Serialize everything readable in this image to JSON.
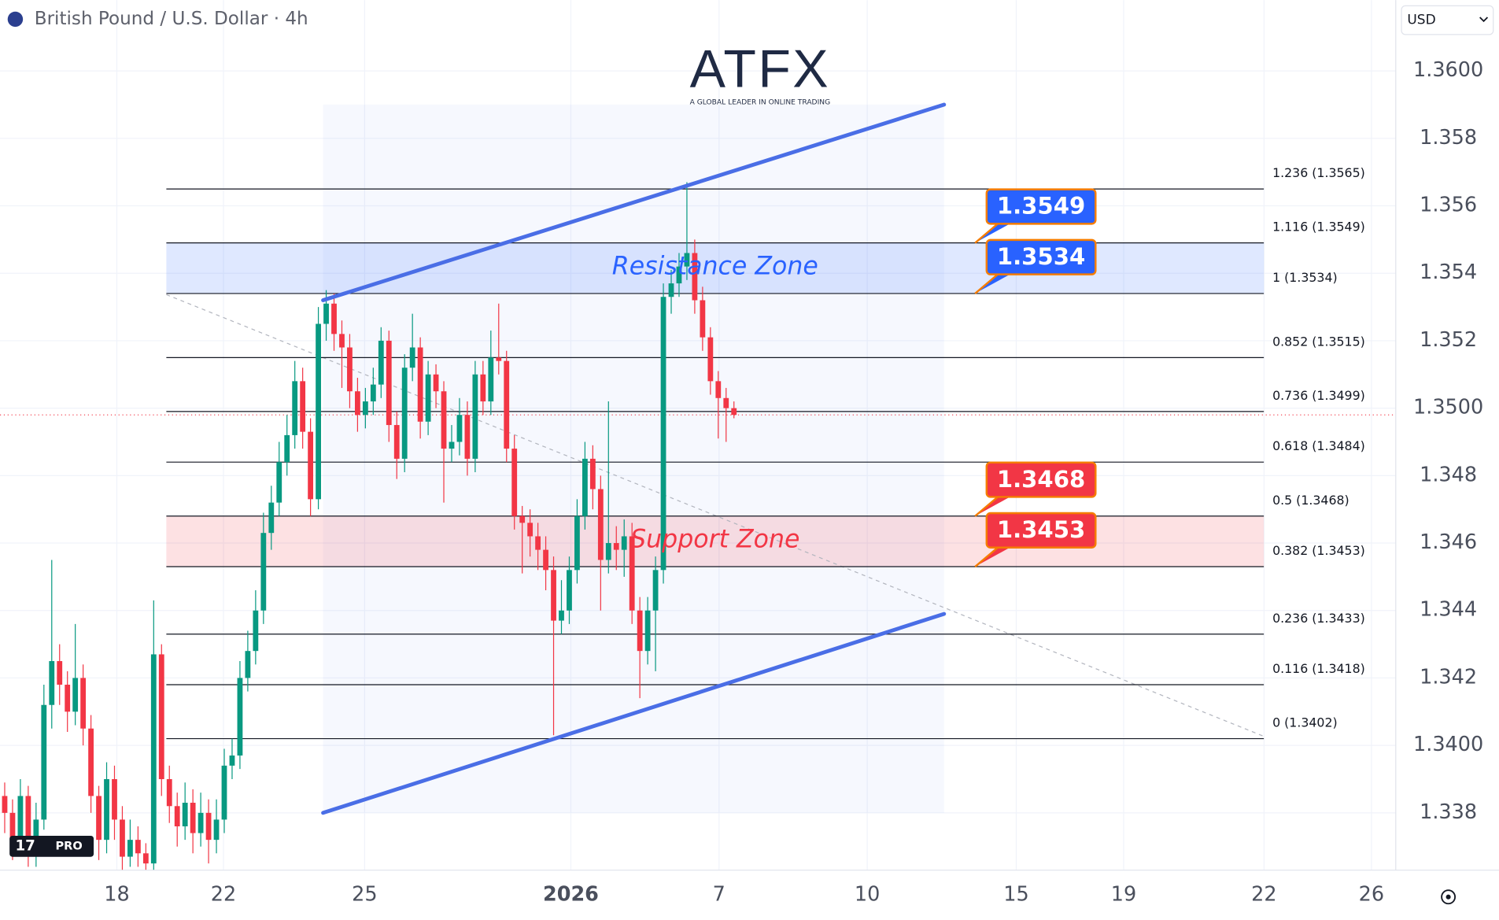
{
  "header": {
    "symbol": "British Pound / U.S. Dollar · 4h",
    "currency": "USD"
  },
  "logo": {
    "name": "ATFX",
    "tagline": "A GLOBAL LEADER IN ONLINE TRADING",
    "badge": "PRO"
  },
  "chart_data": {
    "type": "candlestick",
    "up_color": "#089981",
    "down_color": "#f23645",
    "open": [
      1.3385,
      1.338,
      1.3372,
      1.3385,
      1.3368,
      1.3378,
      1.3412,
      1.3425,
      1.3418,
      1.341,
      1.342,
      1.3405,
      1.3385,
      1.3372,
      1.339,
      1.3378,
      1.3367,
      1.3372,
      1.3368,
      1.3365,
      1.3427,
      1.339,
      1.3382,
      1.3376,
      1.3383,
      1.3374,
      1.338,
      1.3372,
      1.3378,
      1.3394,
      1.3397,
      1.342,
      1.3428,
      1.344,
      1.3463,
      1.3472,
      1.3484,
      1.3492,
      1.3508,
      1.3493,
      1.3473,
      1.3525,
      1.3531,
      1.3522,
      1.3518,
      1.3505,
      1.3498,
      1.3502,
      1.3507,
      1.352,
      1.3495,
      1.3485,
      1.3512,
      1.3518,
      1.3496,
      1.351,
      1.3505,
      1.3488,
      1.349,
      1.3498,
      1.3485,
      1.351,
      1.3502,
      1.3515,
      1.3514,
      1.3488,
      1.3468,
      1.3466,
      1.3462,
      1.3458,
      1.3452,
      1.3437,
      1.344,
      1.3452,
      1.3468,
      1.3485,
      1.3476,
      1.3455,
      1.346,
      1.3458,
      1.3462,
      1.344,
      1.3428,
      1.344,
      1.3452,
      1.3533,
      1.3537,
      1.3542,
      1.3546,
      1.3532,
      1.3521,
      1.3508,
      1.3503,
      1.35
    ],
    "high": [
      1.3389,
      1.3384,
      1.339,
      1.3388,
      1.3383,
      1.3418,
      1.3455,
      1.343,
      1.3422,
      1.3436,
      1.3424,
      1.3409,
      1.3388,
      1.3395,
      1.3394,
      1.3382,
      1.3378,
      1.3376,
      1.3371,
      1.3443,
      1.343,
      1.3394,
      1.3386,
      1.3389,
      1.3387,
      1.3386,
      1.3384,
      1.3384,
      1.3399,
      1.3402,
      1.3425,
      1.3434,
      1.3446,
      1.3469,
      1.3477,
      1.349,
      1.3498,
      1.3514,
      1.3512,
      1.3497,
      1.353,
      1.3535,
      1.3534,
      1.3526,
      1.3522,
      1.3509,
      1.3506,
      1.3512,
      1.3524,
      1.3523,
      1.3499,
      1.3516,
      1.3528,
      1.3521,
      1.3514,
      1.3513,
      1.3508,
      1.3495,
      1.3503,
      1.3502,
      1.3514,
      1.3514,
      1.3523,
      1.3531,
      1.3517,
      1.3492,
      1.3471,
      1.347,
      1.3466,
      1.3462,
      1.3456,
      1.3449,
      1.3456,
      1.3473,
      1.349,
      1.3489,
      1.348,
      1.3502,
      1.3465,
      1.3467,
      1.3466,
      1.3444,
      1.3444,
      1.3456,
      1.3537,
      1.3541,
      1.3546,
      1.3567,
      1.355,
      1.3536,
      1.3524,
      1.3511,
      1.3506,
      1.3502
    ],
    "low": [
      1.3374,
      1.3366,
      1.3368,
      1.3364,
      1.3364,
      1.3375,
      1.3405,
      1.3412,
      1.3404,
      1.3406,
      1.34,
      1.338,
      1.3366,
      1.3368,
      1.3372,
      1.3363,
      1.3364,
      1.3364,
      1.3363,
      1.3363,
      1.3385,
      1.3377,
      1.337,
      1.3372,
      1.3368,
      1.337,
      1.3365,
      1.3368,
      1.3374,
      1.339,
      1.3393,
      1.3416,
      1.3424,
      1.3436,
      1.3458,
      1.3468,
      1.348,
      1.3488,
      1.3488,
      1.3468,
      1.347,
      1.352,
      1.3517,
      1.3506,
      1.35,
      1.3493,
      1.3494,
      1.3498,
      1.3503,
      1.349,
      1.3479,
      1.3481,
      1.3508,
      1.3491,
      1.3492,
      1.35,
      1.3472,
      1.3484,
      1.3486,
      1.348,
      1.3481,
      1.3498,
      1.3498,
      1.351,
      1.3484,
      1.3464,
      1.3451,
      1.3456,
      1.3452,
      1.3446,
      1.3403,
      1.3433,
      1.3436,
      1.3448,
      1.3464,
      1.347,
      1.344,
      1.3451,
      1.3452,
      1.345,
      1.3436,
      1.3414,
      1.3424,
      1.3422,
      1.3448,
      1.3528,
      1.3533,
      1.3538,
      1.3528,
      1.3517,
      1.3504,
      1.3491,
      1.349,
      1.3497
    ],
    "close": [
      1.338,
      1.3372,
      1.3385,
      1.3368,
      1.3378,
      1.3412,
      1.3425,
      1.3418,
      1.341,
      1.342,
      1.3405,
      1.3385,
      1.3372,
      1.339,
      1.3378,
      1.3367,
      1.3372,
      1.3368,
      1.3365,
      1.3427,
      1.339,
      1.3382,
      1.3376,
      1.3383,
      1.3374,
      1.338,
      1.3372,
      1.3378,
      1.3394,
      1.3397,
      1.342,
      1.3428,
      1.344,
      1.3463,
      1.3472,
      1.3484,
      1.3492,
      1.3508,
      1.3493,
      1.3473,
      1.3525,
      1.3531,
      1.3522,
      1.3518,
      1.3505,
      1.3498,
      1.3502,
      1.3507,
      1.352,
      1.3495,
      1.3485,
      1.3512,
      1.3518,
      1.3496,
      1.351,
      1.3505,
      1.3488,
      1.349,
      1.3498,
      1.3485,
      1.351,
      1.3502,
      1.3515,
      1.3514,
      1.3488,
      1.3468,
      1.3466,
      1.3462,
      1.3458,
      1.3452,
      1.3437,
      1.344,
      1.3452,
      1.3468,
      1.3485,
      1.3476,
      1.3455,
      1.346,
      1.3458,
      1.3462,
      1.344,
      1.3428,
      1.344,
      1.3452,
      1.3533,
      1.3537,
      1.3542,
      1.3546,
      1.3532,
      1.3521,
      1.3508,
      1.3503,
      1.35,
      1.3498
    ],
    "xlim": [
      -0.6,
      177.4
    ],
    "xticks": [
      {
        "value": 14.3,
        "label": "18"
      },
      {
        "value": 27.9,
        "label": "22"
      },
      {
        "value": 45.9,
        "label": "25"
      },
      {
        "value": 72.2,
        "label": "2026",
        "bold": true
      },
      {
        "value": 91.1,
        "label": "7"
      },
      {
        "value": 110,
        "label": "10"
      },
      {
        "value": 129,
        "label": "15"
      },
      {
        "value": 142.7,
        "label": "19"
      },
      {
        "value": 160.6,
        "label": "22"
      },
      {
        "value": 174.3,
        "label": "26"
      }
    ],
    "ylim": [
      1.3363,
      1.3621
    ],
    "yticks": [
      {
        "value": 1.36,
        "label": "1.3600"
      },
      1.358,
      1.356,
      1.354,
      1.352,
      {
        "value": 1.35,
        "label": "1.3500"
      },
      1.348,
      1.346,
      1.344,
      1.342,
      {
        "value": 1.34,
        "label": "1.3400"
      },
      1.338
    ],
    "fib_levels": [
      {
        "value": 1.3565,
        "label": "1.236 (1.3565)"
      },
      {
        "value": 1.3549,
        "label": "1.116 (1.3549)"
      },
      {
        "value": 1.3534,
        "label": "1 (1.3534)"
      },
      {
        "value": 1.3515,
        "label": "0.852 (1.3515)"
      },
      {
        "value": 1.3499,
        "label": "0.736 (1.3499)"
      },
      {
        "value": 1.3484,
        "label": "0.618 (1.3484)"
      },
      {
        "value": 1.3468,
        "label": "0.5 (1.3468)"
      },
      {
        "value": 1.3453,
        "label": "0.382 (1.3453)"
      },
      {
        "value": 1.3433,
        "label": "0.236 (1.3433)"
      },
      {
        "value": 1.3418,
        "label": "0.116 (1.3418)"
      },
      {
        "value": 1.3402,
        "label": "0 (1.3402)"
      }
    ],
    "zones": [
      {
        "label": "Resistance Zone",
        "from": 1.3534,
        "to": 1.3549,
        "color": "#2962ff"
      },
      {
        "label": "Support Zone",
        "from": 1.3453,
        "to": 1.3468,
        "color": "#f23645"
      }
    ],
    "price_tags": {
      "values": [
        1.3549,
        1.3534,
        1.3468,
        1.3453
      ],
      "colors": [
        "#2962ff",
        "#2962ff",
        "#f23645",
        "#f23645"
      ]
    },
    "channel": {
      "color": "#4a6ee6",
      "upper": {
        "x": [
          40.6,
          119.8
        ],
        "y": [
          1.3532,
          1.359
        ]
      },
      "lower": {
        "x": [
          40.6,
          119.8
        ],
        "y": [
          1.338,
          1.3439
        ]
      }
    }
  }
}
